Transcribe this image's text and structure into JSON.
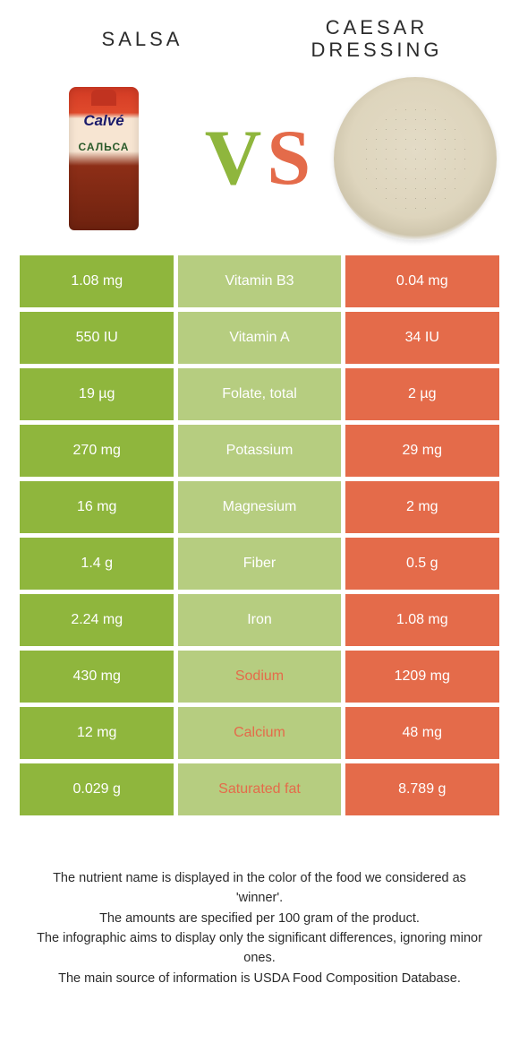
{
  "colors": {
    "left": "#8fb63d",
    "right": "#e46b4a",
    "mid": "#b6cd80",
    "mid_bg": "#b6cd80",
    "row_gap": 5
  },
  "header": {
    "left_title": "Salsa",
    "right_title": "Caesar dressing",
    "vs_v": "V",
    "vs_s": "S",
    "packet_brand": "Calvé",
    "packet_word": "САЛЬСА"
  },
  "rows": [
    {
      "left": "1.08 mg",
      "label": "Vitamin B3",
      "right": "0.04 mg",
      "winner": "left"
    },
    {
      "left": "550 IU",
      "label": "Vitamin A",
      "right": "34 IU",
      "winner": "left"
    },
    {
      "left": "19 µg",
      "label": "Folate, total",
      "right": "2 µg",
      "winner": "left"
    },
    {
      "left": "270 mg",
      "label": "Potassium",
      "right": "29 mg",
      "winner": "left"
    },
    {
      "left": "16 mg",
      "label": "Magnesium",
      "right": "2 mg",
      "winner": "left"
    },
    {
      "left": "1.4 g",
      "label": "Fiber",
      "right": "0.5 g",
      "winner": "left"
    },
    {
      "left": "2.24 mg",
      "label": "Iron",
      "right": "1.08 mg",
      "winner": "left"
    },
    {
      "left": "430 mg",
      "label": "Sodium",
      "right": "1209 mg",
      "winner": "right"
    },
    {
      "left": "12 mg",
      "label": "Calcium",
      "right": "48 mg",
      "winner": "right"
    },
    {
      "left": "0.029 g",
      "label": "Saturated fat",
      "right": "8.789 g",
      "winner": "right"
    }
  ],
  "footer": {
    "l1": "The nutrient name is displayed in the color of the food we considered as 'winner'.",
    "l2": "The amounts are specified per 100 gram of the product.",
    "l3": "The infographic aims to display only the significant differences, ignoring minor ones.",
    "l4": "The main source of information is USDA Food Composition Database."
  }
}
